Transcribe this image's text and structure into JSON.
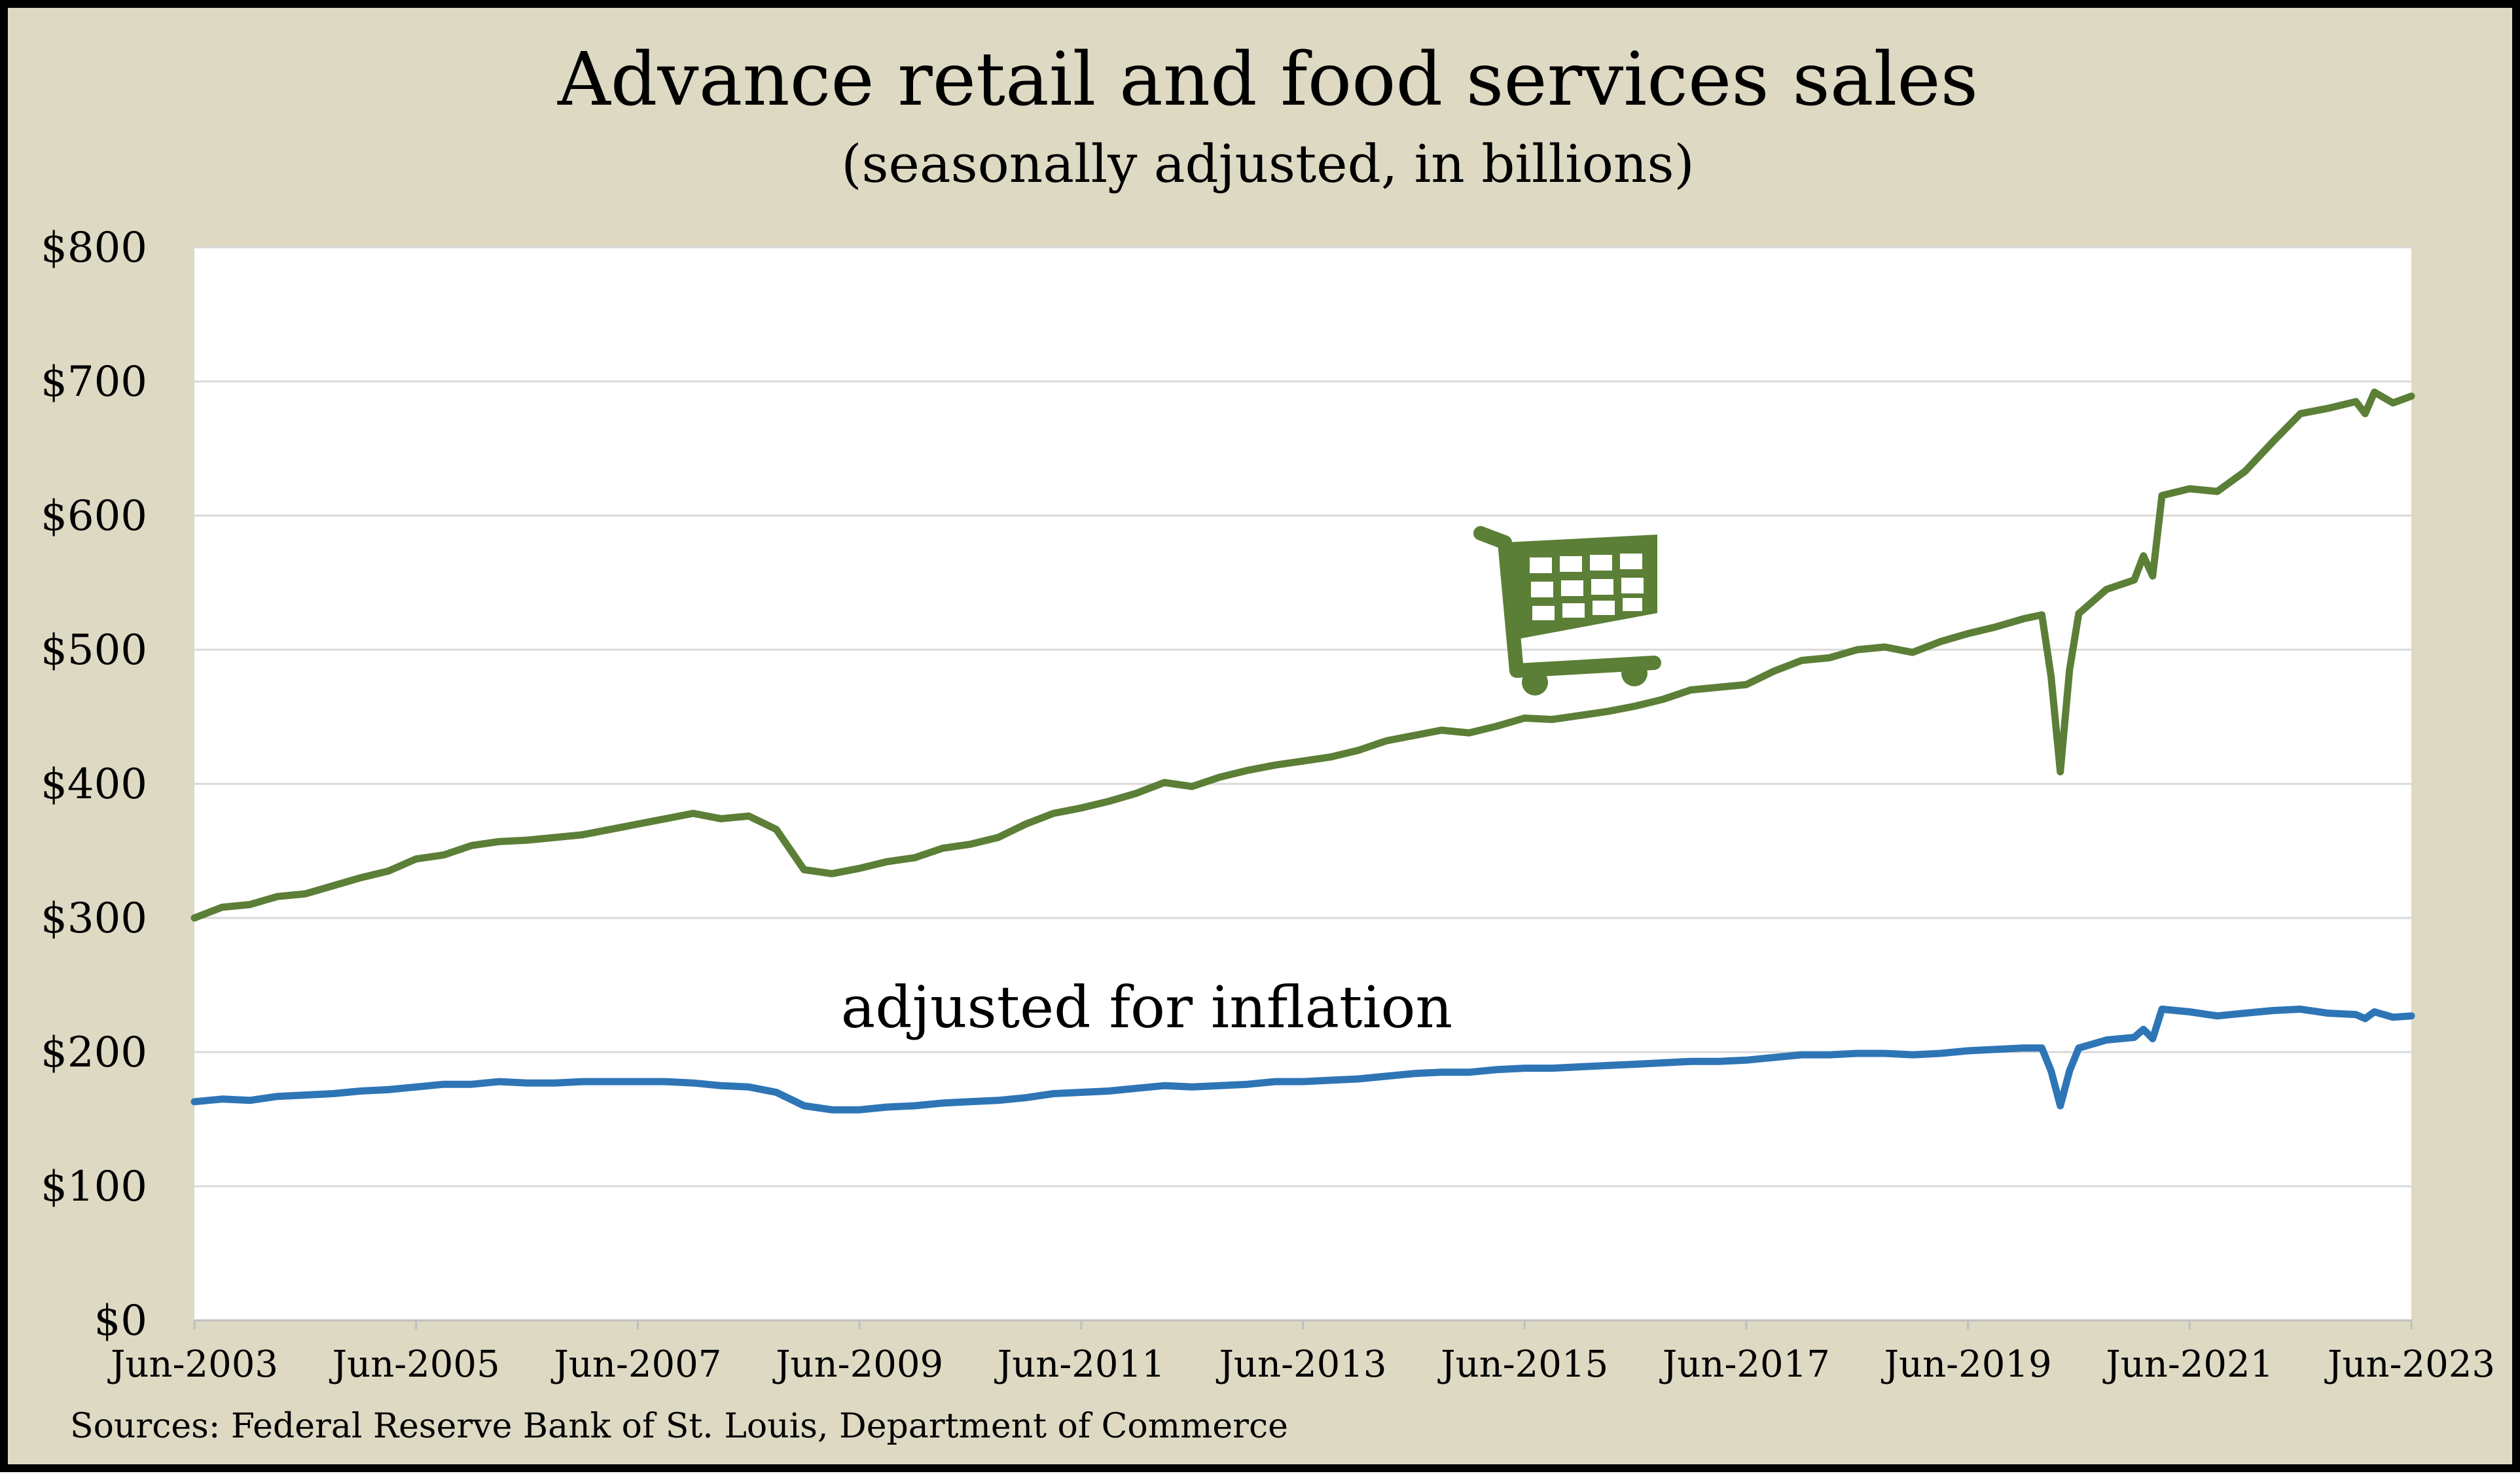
{
  "chart_data": {
    "type": "line",
    "title": "Advance retail and food services sales",
    "subtitle": "(seasonally adjusted, in billions)",
    "source": "Sources: Federal Reserve Bank of St. Louis, Department of Commerce",
    "annotation": "adjusted for inflation",
    "icon": "shopping-cart-icon",
    "x_range": [
      "2003-06",
      "2023-06"
    ],
    "ylim": [
      0,
      800
    ],
    "grid": true,
    "y_ticks": [
      {
        "value": 0,
        "label": "$0"
      },
      {
        "value": 100,
        "label": "$100"
      },
      {
        "value": 200,
        "label": "$200"
      },
      {
        "value": 300,
        "label": "$300"
      },
      {
        "value": 400,
        "label": "$400"
      },
      {
        "value": 500,
        "label": "$500"
      },
      {
        "value": 600,
        "label": "$600"
      },
      {
        "value": 700,
        "label": "$700"
      },
      {
        "value": 800,
        "label": "$800"
      }
    ],
    "x_ticks": [
      {
        "value": "2003-06",
        "label": "Jun-2003"
      },
      {
        "value": "2005-06",
        "label": "Jun-2005"
      },
      {
        "value": "2007-06",
        "label": "Jun-2007"
      },
      {
        "value": "2009-06",
        "label": "Jun-2009"
      },
      {
        "value": "2011-06",
        "label": "Jun-2011"
      },
      {
        "value": "2013-06",
        "label": "Jun-2013"
      },
      {
        "value": "2015-06",
        "label": "Jun-2015"
      },
      {
        "value": "2017-06",
        "label": "Jun-2017"
      },
      {
        "value": "2019-06",
        "label": "Jun-2019"
      },
      {
        "value": "2021-06",
        "label": "Jun-2021"
      },
      {
        "value": "2023-06",
        "label": "Jun-2023"
      }
    ],
    "series": [
      {
        "color": "#5b7f36",
        "points": [
          [
            "2003-06",
            300
          ],
          [
            "2003-09",
            308
          ],
          [
            "2003-12",
            310
          ],
          [
            "2004-03",
            316
          ],
          [
            "2004-06",
            318
          ],
          [
            "2004-09",
            324
          ],
          [
            "2004-12",
            330
          ],
          [
            "2005-03",
            335
          ],
          [
            "2005-06",
            344
          ],
          [
            "2005-09",
            347
          ],
          [
            "2005-12",
            354
          ],
          [
            "2006-03",
            357
          ],
          [
            "2006-06",
            358
          ],
          [
            "2006-09",
            360
          ],
          [
            "2006-12",
            362
          ],
          [
            "2007-03",
            366
          ],
          [
            "2007-06",
            370
          ],
          [
            "2007-09",
            374
          ],
          [
            "2007-12",
            378
          ],
          [
            "2008-03",
            374
          ],
          [
            "2008-06",
            376
          ],
          [
            "2008-09",
            366
          ],
          [
            "2008-12",
            336
          ],
          [
            "2009-03",
            333
          ],
          [
            "2009-06",
            337
          ],
          [
            "2009-09",
            342
          ],
          [
            "2009-12",
            345
          ],
          [
            "2010-03",
            352
          ],
          [
            "2010-06",
            355
          ],
          [
            "2010-09",
            360
          ],
          [
            "2010-12",
            370
          ],
          [
            "2011-03",
            378
          ],
          [
            "2011-06",
            382
          ],
          [
            "2011-09",
            387
          ],
          [
            "2011-12",
            393
          ],
          [
            "2012-03",
            401
          ],
          [
            "2012-06",
            398
          ],
          [
            "2012-09",
            405
          ],
          [
            "2012-12",
            410
          ],
          [
            "2013-03",
            414
          ],
          [
            "2013-06",
            417
          ],
          [
            "2013-09",
            420
          ],
          [
            "2013-12",
            425
          ],
          [
            "2014-03",
            432
          ],
          [
            "2014-06",
            436
          ],
          [
            "2014-09",
            440
          ],
          [
            "2014-12",
            438
          ],
          [
            "2015-03",
            443
          ],
          [
            "2015-06",
            449
          ],
          [
            "2015-09",
            448
          ],
          [
            "2015-12",
            451
          ],
          [
            "2016-03",
            454
          ],
          [
            "2016-06",
            458
          ],
          [
            "2016-09",
            463
          ],
          [
            "2016-12",
            470
          ],
          [
            "2017-03",
            472
          ],
          [
            "2017-06",
            474
          ],
          [
            "2017-09",
            484
          ],
          [
            "2017-12",
            492
          ],
          [
            "2018-03",
            494
          ],
          [
            "2018-06",
            500
          ],
          [
            "2018-09",
            502
          ],
          [
            "2018-12",
            498
          ],
          [
            "2019-03",
            506
          ],
          [
            "2019-06",
            512
          ],
          [
            "2019-09",
            517
          ],
          [
            "2019-12",
            523
          ],
          [
            "2020-02",
            526
          ],
          [
            "2020-03",
            480
          ],
          [
            "2020-04",
            409
          ],
          [
            "2020-05",
            485
          ],
          [
            "2020-06",
            527
          ],
          [
            "2020-09",
            545
          ],
          [
            "2020-12",
            552
          ],
          [
            "2021-01",
            570
          ],
          [
            "2021-02",
            555
          ],
          [
            "2021-03",
            615
          ],
          [
            "2021-06",
            620
          ],
          [
            "2021-09",
            618
          ],
          [
            "2021-12",
            633
          ],
          [
            "2022-03",
            655
          ],
          [
            "2022-06",
            676
          ],
          [
            "2022-09",
            680
          ],
          [
            "2022-12",
            685
          ],
          [
            "2023-01",
            676
          ],
          [
            "2023-02",
            692
          ],
          [
            "2023-04",
            684
          ],
          [
            "2023-06",
            689
          ]
        ]
      },
      {
        "color": "#2e75b6",
        "points": [
          [
            "2003-06",
            163
          ],
          [
            "2003-09",
            165
          ],
          [
            "2003-12",
            164
          ],
          [
            "2004-03",
            167
          ],
          [
            "2004-06",
            168
          ],
          [
            "2004-09",
            169
          ],
          [
            "2004-12",
            171
          ],
          [
            "2005-03",
            172
          ],
          [
            "2005-06",
            174
          ],
          [
            "2005-09",
            176
          ],
          [
            "2005-12",
            176
          ],
          [
            "2006-03",
            178
          ],
          [
            "2006-06",
            177
          ],
          [
            "2006-09",
            177
          ],
          [
            "2006-12",
            178
          ],
          [
            "2007-03",
            178
          ],
          [
            "2007-06",
            178
          ],
          [
            "2007-09",
            178
          ],
          [
            "2007-12",
            177
          ],
          [
            "2008-03",
            175
          ],
          [
            "2008-06",
            174
          ],
          [
            "2008-09",
            170
          ],
          [
            "2008-12",
            160
          ],
          [
            "2009-03",
            157
          ],
          [
            "2009-06",
            157
          ],
          [
            "2009-09",
            159
          ],
          [
            "2009-12",
            160
          ],
          [
            "2010-03",
            162
          ],
          [
            "2010-06",
            163
          ],
          [
            "2010-09",
            164
          ],
          [
            "2010-12",
            166
          ],
          [
            "2011-03",
            169
          ],
          [
            "2011-06",
            170
          ],
          [
            "2011-09",
            171
          ],
          [
            "2011-12",
            173
          ],
          [
            "2012-03",
            175
          ],
          [
            "2012-06",
            174
          ],
          [
            "2012-09",
            175
          ],
          [
            "2012-12",
            176
          ],
          [
            "2013-03",
            178
          ],
          [
            "2013-06",
            178
          ],
          [
            "2013-09",
            179
          ],
          [
            "2013-12",
            180
          ],
          [
            "2014-03",
            182
          ],
          [
            "2014-06",
            184
          ],
          [
            "2014-09",
            185
          ],
          [
            "2014-12",
            185
          ],
          [
            "2015-03",
            187
          ],
          [
            "2015-06",
            188
          ],
          [
            "2015-09",
            188
          ],
          [
            "2015-12",
            189
          ],
          [
            "2016-03",
            190
          ],
          [
            "2016-06",
            191
          ],
          [
            "2016-09",
            192
          ],
          [
            "2016-12",
            193
          ],
          [
            "2017-03",
            193
          ],
          [
            "2017-06",
            194
          ],
          [
            "2017-09",
            196
          ],
          [
            "2017-12",
            198
          ],
          [
            "2018-03",
            198
          ],
          [
            "2018-06",
            199
          ],
          [
            "2018-09",
            199
          ],
          [
            "2018-12",
            198
          ],
          [
            "2019-03",
            199
          ],
          [
            "2019-06",
            201
          ],
          [
            "2019-09",
            202
          ],
          [
            "2019-12",
            203
          ],
          [
            "2020-02",
            203
          ],
          [
            "2020-03",
            186
          ],
          [
            "2020-04",
            160
          ],
          [
            "2020-05",
            186
          ],
          [
            "2020-06",
            203
          ],
          [
            "2020-09",
            209
          ],
          [
            "2020-12",
            211
          ],
          [
            "2021-01",
            217
          ],
          [
            "2021-02",
            210
          ],
          [
            "2021-03",
            232
          ],
          [
            "2021-06",
            230
          ],
          [
            "2021-09",
            227
          ],
          [
            "2021-12",
            229
          ],
          [
            "2022-03",
            231
          ],
          [
            "2022-06",
            232
          ],
          [
            "2022-09",
            229
          ],
          [
            "2022-12",
            228
          ],
          [
            "2023-01",
            225
          ],
          [
            "2023-02",
            230
          ],
          [
            "2023-04",
            226
          ],
          [
            "2023-06",
            227
          ]
        ]
      }
    ]
  }
}
